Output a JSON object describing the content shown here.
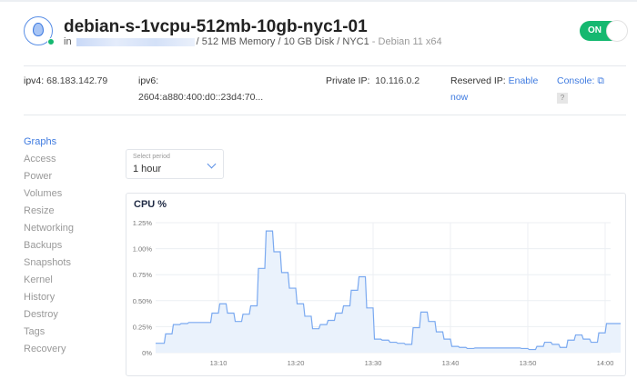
{
  "header": {
    "title": "debian-s-1vcpu-512mb-10gb-nyc1-01",
    "sub_prefix": "in",
    "specs": "/ 512 MB Memory / 10 GB Disk / NYC1",
    "os": " - Debian 11 x64",
    "power_toggle": "ON",
    "status_color": "#15b870"
  },
  "network": {
    "ipv4_label": "ipv4:",
    "ipv4": "68.183.142.79",
    "ipv6_label": "ipv6:",
    "ipv6": "2604:a880:400:d0::23d4:70...",
    "private_label": "Private IP:",
    "private": "10.116.0.2",
    "reserved_label": "Reserved IP:",
    "reserved_link": "Enable now",
    "console_label": "Console:",
    "help": "?"
  },
  "sidebar": {
    "items": [
      {
        "label": "Graphs",
        "active": true
      },
      {
        "label": "Access"
      },
      {
        "label": "Power"
      },
      {
        "label": "Volumes"
      },
      {
        "label": "Resize"
      },
      {
        "label": "Networking"
      },
      {
        "label": "Backups"
      },
      {
        "label": "Snapshots"
      },
      {
        "label": "Kernel"
      },
      {
        "label": "History"
      },
      {
        "label": "Destroy"
      },
      {
        "label": "Tags"
      },
      {
        "label": "Recovery"
      }
    ]
  },
  "period": {
    "label": "Select period",
    "value": "1 hour"
  },
  "chart_data": {
    "type": "area",
    "title": "CPU %",
    "color": "#7aa9f0",
    "fill": "#eaf2fc",
    "grid": true,
    "ylim": [
      0,
      1.25
    ],
    "yticks": [
      "0%",
      "0.25%",
      "0.50%",
      "0.75%",
      "1.00%",
      "1.25%"
    ],
    "xticks": [
      "13:10",
      "13:20",
      "13:30",
      "13:40",
      "13:50",
      "14:00"
    ],
    "x": [
      "13:02",
      "13:03",
      "13:04",
      "13:05",
      "13:06",
      "13:07",
      "13:08",
      "13:09",
      "13:10",
      "13:11",
      "13:12",
      "13:13",
      "13:14",
      "13:15",
      "13:16",
      "13:17",
      "13:18",
      "13:19",
      "13:20",
      "13:21",
      "13:22",
      "13:23",
      "13:24",
      "13:25",
      "13:26",
      "13:27",
      "13:28",
      "13:29",
      "13:30",
      "13:31",
      "13:32",
      "13:33",
      "13:34",
      "13:35",
      "13:36",
      "13:37",
      "13:38",
      "13:39",
      "13:40",
      "13:41",
      "13:42",
      "13:43",
      "13:44",
      "13:45",
      "13:46",
      "13:47",
      "13:48",
      "13:49",
      "13:50",
      "13:51",
      "13:52",
      "13:53",
      "13:54",
      "13:55",
      "13:56",
      "13:57",
      "13:58",
      "13:59",
      "14:00",
      "14:01"
    ],
    "values": [
      0.09,
      0.18,
      0.27,
      0.28,
      0.29,
      0.29,
      0.29,
      0.38,
      0.47,
      0.38,
      0.3,
      0.37,
      0.45,
      0.81,
      1.17,
      0.97,
      0.77,
      0.62,
      0.47,
      0.35,
      0.23,
      0.27,
      0.31,
      0.38,
      0.45,
      0.6,
      0.73,
      0.43,
      0.13,
      0.12,
      0.1,
      0.09,
      0.08,
      0.24,
      0.39,
      0.3,
      0.2,
      0.13,
      0.06,
      0.05,
      0.04,
      0.045,
      0.045,
      0.045,
      0.045,
      0.045,
      0.045,
      0.04,
      0.03,
      0.06,
      0.1,
      0.08,
      0.05,
      0.12,
      0.17,
      0.13,
      0.1,
      0.19,
      0.28,
      0.28
    ]
  }
}
